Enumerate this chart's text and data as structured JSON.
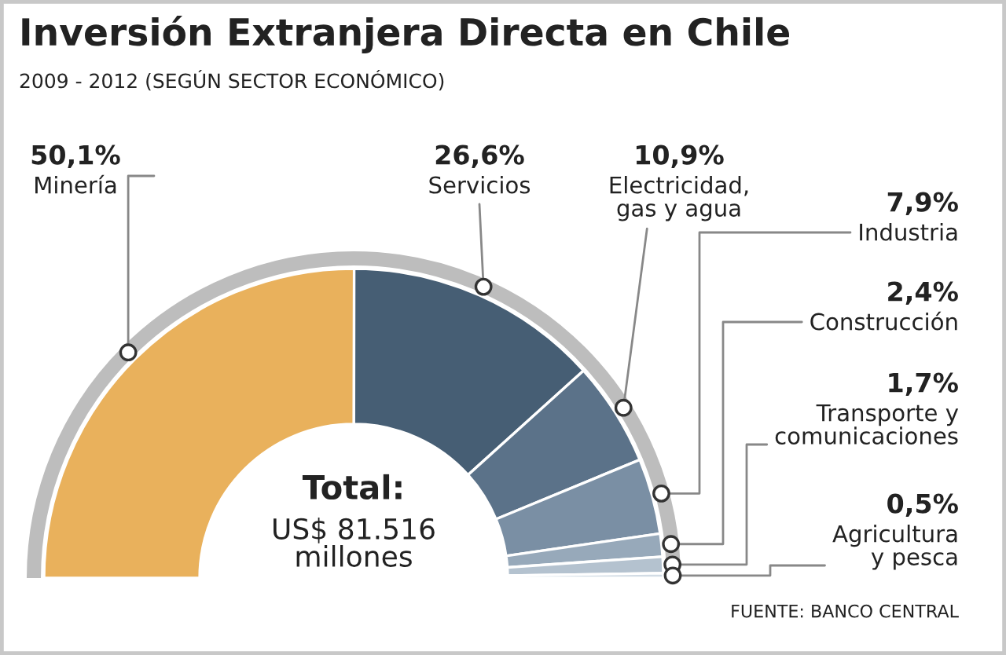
{
  "chart_data": {
    "type": "donut",
    "title": "Inversión Extranjera Directa en Chile",
    "subtitle": "2009 - 2012 (SEGÚN SECTOR ECONÓMICO)",
    "categories": [
      "Minería",
      "Servicios",
      "Electricidad,\ngas y agua",
      "Industria",
      "Construcción",
      "Transporte y\ncomunicaciones",
      "Agricultura\ny pesca"
    ],
    "values": [
      50.1,
      26.6,
      10.9,
      7.9,
      2.4,
      1.7,
      0.5
    ],
    "colors": [
      "#e9b15c",
      "#465e74",
      "#5b7289",
      "#7a8fa4",
      "#97a9ba",
      "#b4c2cf",
      "#d2dce5"
    ],
    "value_labels": [
      "50,1%",
      "26,6%",
      "10,9%",
      "7,9%",
      "2,4%",
      "1,7%",
      "0,5%"
    ],
    "annotations": [
      "Total:",
      "US$ 81.516\nmillones",
      "FUENTE: BANCO CENTRAL"
    ]
  }
}
